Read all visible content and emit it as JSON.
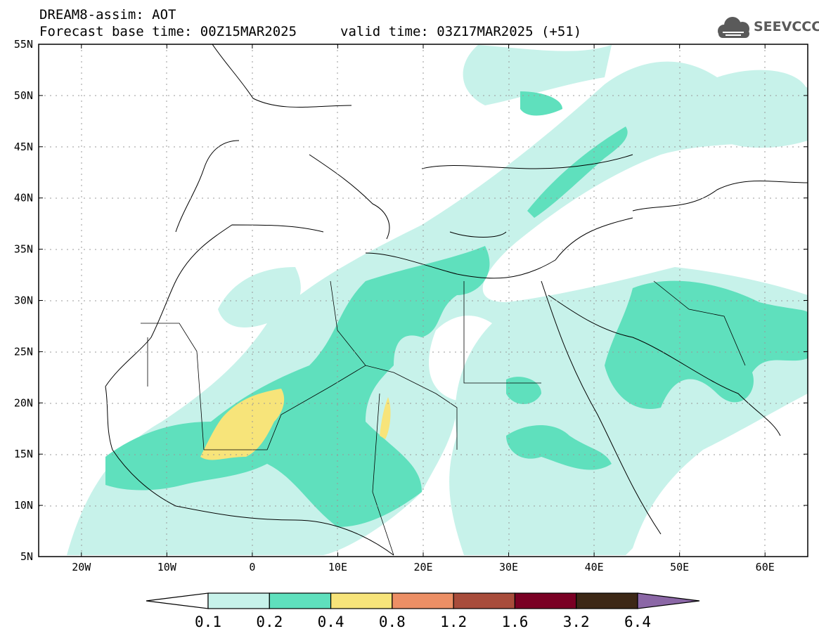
{
  "header": {
    "title": "DREAM8-assim: AOT",
    "base_time": "Forecast base time: 00Z15MAR2025",
    "valid_time": "valid time: 03Z17MAR2025 (+51)"
  },
  "logo": {
    "text": "SEEVCCC",
    "icon": "cloud-icon"
  },
  "axes": {
    "lat_labels": [
      "55N",
      "50N",
      "45N",
      "40N",
      "35N",
      "30N",
      "25N",
      "20N",
      "15N",
      "10N",
      "5N"
    ],
    "lat_values": [
      55,
      50,
      45,
      40,
      35,
      30,
      25,
      20,
      15,
      10,
      5
    ],
    "lon_labels": [
      "20W",
      "10W",
      "0",
      "10E",
      "20E",
      "30E",
      "40E",
      "50E",
      "60E"
    ],
    "lon_values": [
      -20,
      -10,
      0,
      10,
      20,
      30,
      40,
      50,
      60
    ],
    "lon_range": [
      -25,
      65
    ],
    "lat_range": [
      5,
      55
    ],
    "grid": true
  },
  "colorbar": {
    "levels": [
      "0.1",
      "0.2",
      "0.4",
      "0.8",
      "1.2",
      "1.6",
      "3.2",
      "6.4"
    ],
    "colors": [
      "#ffffff",
      "#c7f2ea",
      "#5fe0bd",
      "#f7e47a",
      "#ec8f65",
      "#a84c3b",
      "#7a0024",
      "#3d2816",
      "#8b67a6"
    ]
  }
}
